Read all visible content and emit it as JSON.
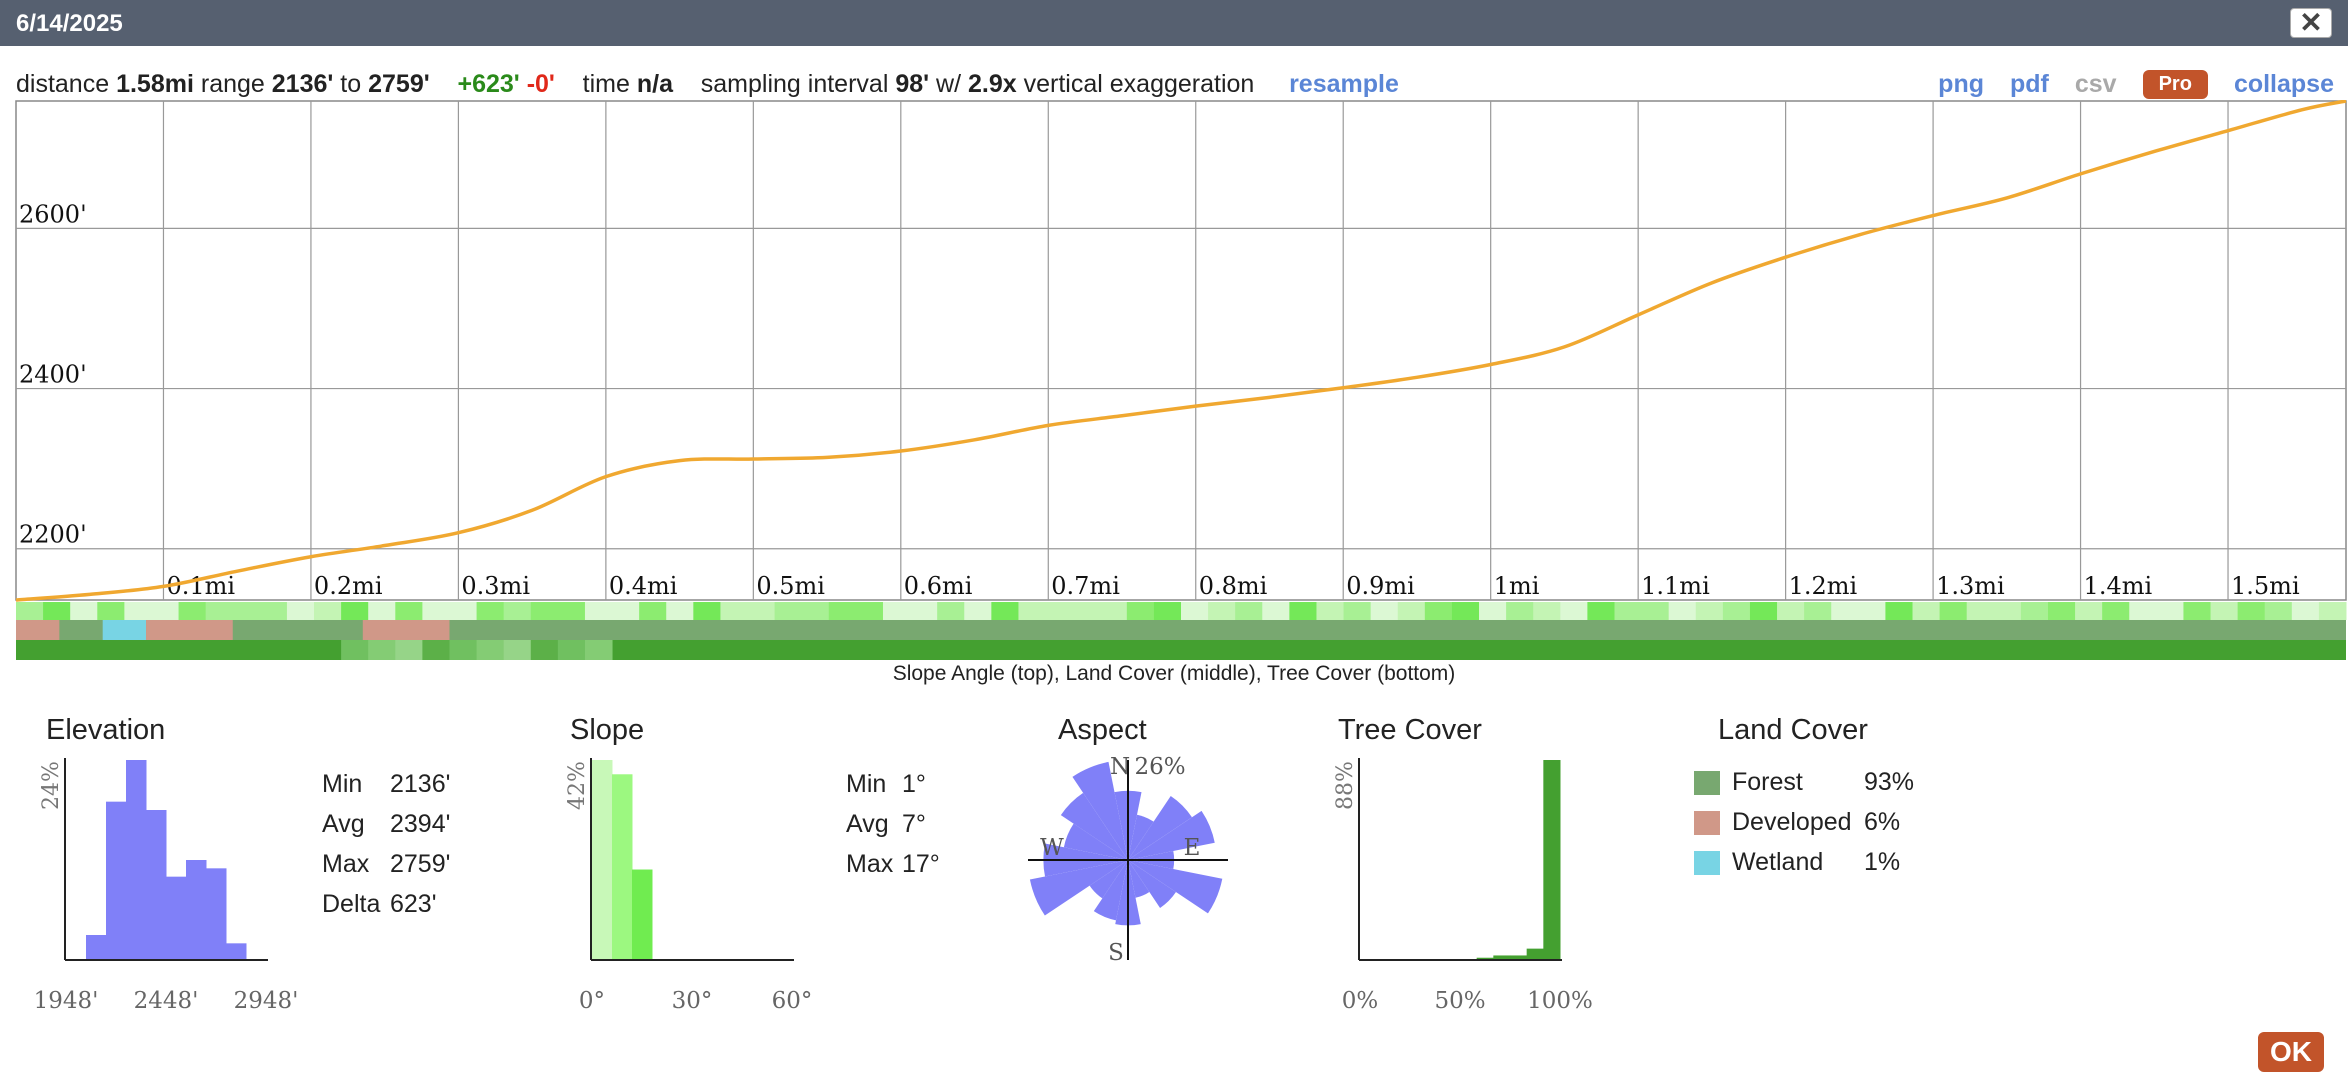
{
  "window": {
    "title": "6/14/2025",
    "close_glyph": "✕"
  },
  "summary": {
    "distance_label": "distance",
    "distance": "1.58mi",
    "range_label": "range",
    "range_min": "2136'",
    "to_label": "to",
    "range_max": "2759'",
    "gain": "+623'",
    "loss": "-0'",
    "time_label": "time",
    "time": "n/a",
    "interval_label": "sampling interval",
    "interval": "98'",
    "w_label": "w/",
    "exaggeration": "2.9x",
    "exaggeration_label": "vertical exaggeration",
    "resample": "resample"
  },
  "links": {
    "png": "png",
    "pdf": "pdf",
    "csv": "csv",
    "pro": "Pro",
    "collapse": "collapse"
  },
  "chart_data": {
    "type": "line",
    "title": "",
    "xlabel": "",
    "ylabel": "",
    "x_ticks": [
      "0.1mi",
      "0.2mi",
      "0.3mi",
      "0.4mi",
      "0.5mi",
      "0.6mi",
      "0.7mi",
      "0.8mi",
      "0.9mi",
      "1mi",
      "1.1mi",
      "1.2mi",
      "1.3mi",
      "1.4mi",
      "1.5mi"
    ],
    "y_ticks": [
      "2200'",
      "2400'",
      "2600'"
    ],
    "y_tick_values": [
      2200,
      2400,
      2600
    ],
    "xlim": [
      0,
      1.58
    ],
    "ylim": [
      2136,
      2759
    ],
    "series": [
      {
        "color": "#f0a830",
        "x": [
          0,
          0.05,
          0.1,
          0.15,
          0.2,
          0.25,
          0.3,
          0.35,
          0.4,
          0.45,
          0.5,
          0.55,
          0.6,
          0.65,
          0.7,
          0.75,
          0.8,
          0.85,
          0.9,
          0.95,
          1.0,
          1.05,
          1.1,
          1.15,
          1.2,
          1.25,
          1.3,
          1.35,
          1.4,
          1.45,
          1.5,
          1.55,
          1.58
        ],
        "y": [
          2136,
          2143,
          2153,
          2172,
          2190,
          2204,
          2220,
          2248,
          2290,
          2310,
          2312,
          2314,
          2322,
          2336,
          2354,
          2366,
          2378,
          2389,
          2401,
          2414,
          2430,
          2452,
          2492,
          2532,
          2564,
          2592,
          2616,
          2638,
          2668,
          2696,
          2722,
          2748,
          2759
        ]
      }
    ]
  },
  "bands_caption": "Slope Angle (top), Land Cover (middle), Tree Cover (bottom)",
  "elevation": {
    "title": "Elevation",
    "max_pct": "24%",
    "ticks": [
      "1948'",
      "2448'",
      "2948'"
    ],
    "bars": [
      0,
      3,
      19,
      24,
      18,
      10,
      12,
      11,
      2,
      0
    ],
    "stats": [
      {
        "label": "Min",
        "value": "2136'"
      },
      {
        "label": "Avg",
        "value": "2394'"
      },
      {
        "label": "Max",
        "value": "2759'"
      },
      {
        "label": "Delta",
        "value": "623'"
      }
    ],
    "color": "#8080f8"
  },
  "slope": {
    "title": "Slope",
    "max_pct": "42%",
    "ticks": [
      "0°",
      "30°",
      "60°"
    ],
    "bars": [
      42,
      39,
      19
    ],
    "bar_colors": [
      "#c8f8b8",
      "#9cf880",
      "#70ec50"
    ],
    "stats": [
      {
        "label": "Min",
        "value": "1°"
      },
      {
        "label": "Avg",
        "value": "7°"
      },
      {
        "label": "Max",
        "value": "17°"
      }
    ]
  },
  "aspect": {
    "title": "Aspect",
    "max_pct": "26%",
    "n": "N",
    "e": "E",
    "s": "S",
    "w": "W",
    "values": [
      18,
      12,
      20,
      23,
      12,
      25,
      15,
      10,
      17,
      16,
      12,
      26,
      22,
      17,
      21,
      26
    ],
    "color": "#8080f8"
  },
  "tree_cover": {
    "title": "Tree Cover",
    "max_pct": "88%",
    "ticks": [
      "0%",
      "50%",
      "100%"
    ],
    "bars": [
      0,
      0,
      0,
      0,
      0,
      0,
      0,
      1,
      2,
      2,
      5,
      88
    ],
    "color": "#44a030"
  },
  "land_cover": {
    "title": "Land Cover",
    "items": [
      {
        "name": "Forest",
        "value": "93%",
        "color": "#78a870"
      },
      {
        "name": "Developed",
        "value": "6%",
        "color": "#d09888"
      },
      {
        "name": "Wetland",
        "value": "1%",
        "color": "#78d4e4"
      }
    ]
  },
  "ok": "OK"
}
